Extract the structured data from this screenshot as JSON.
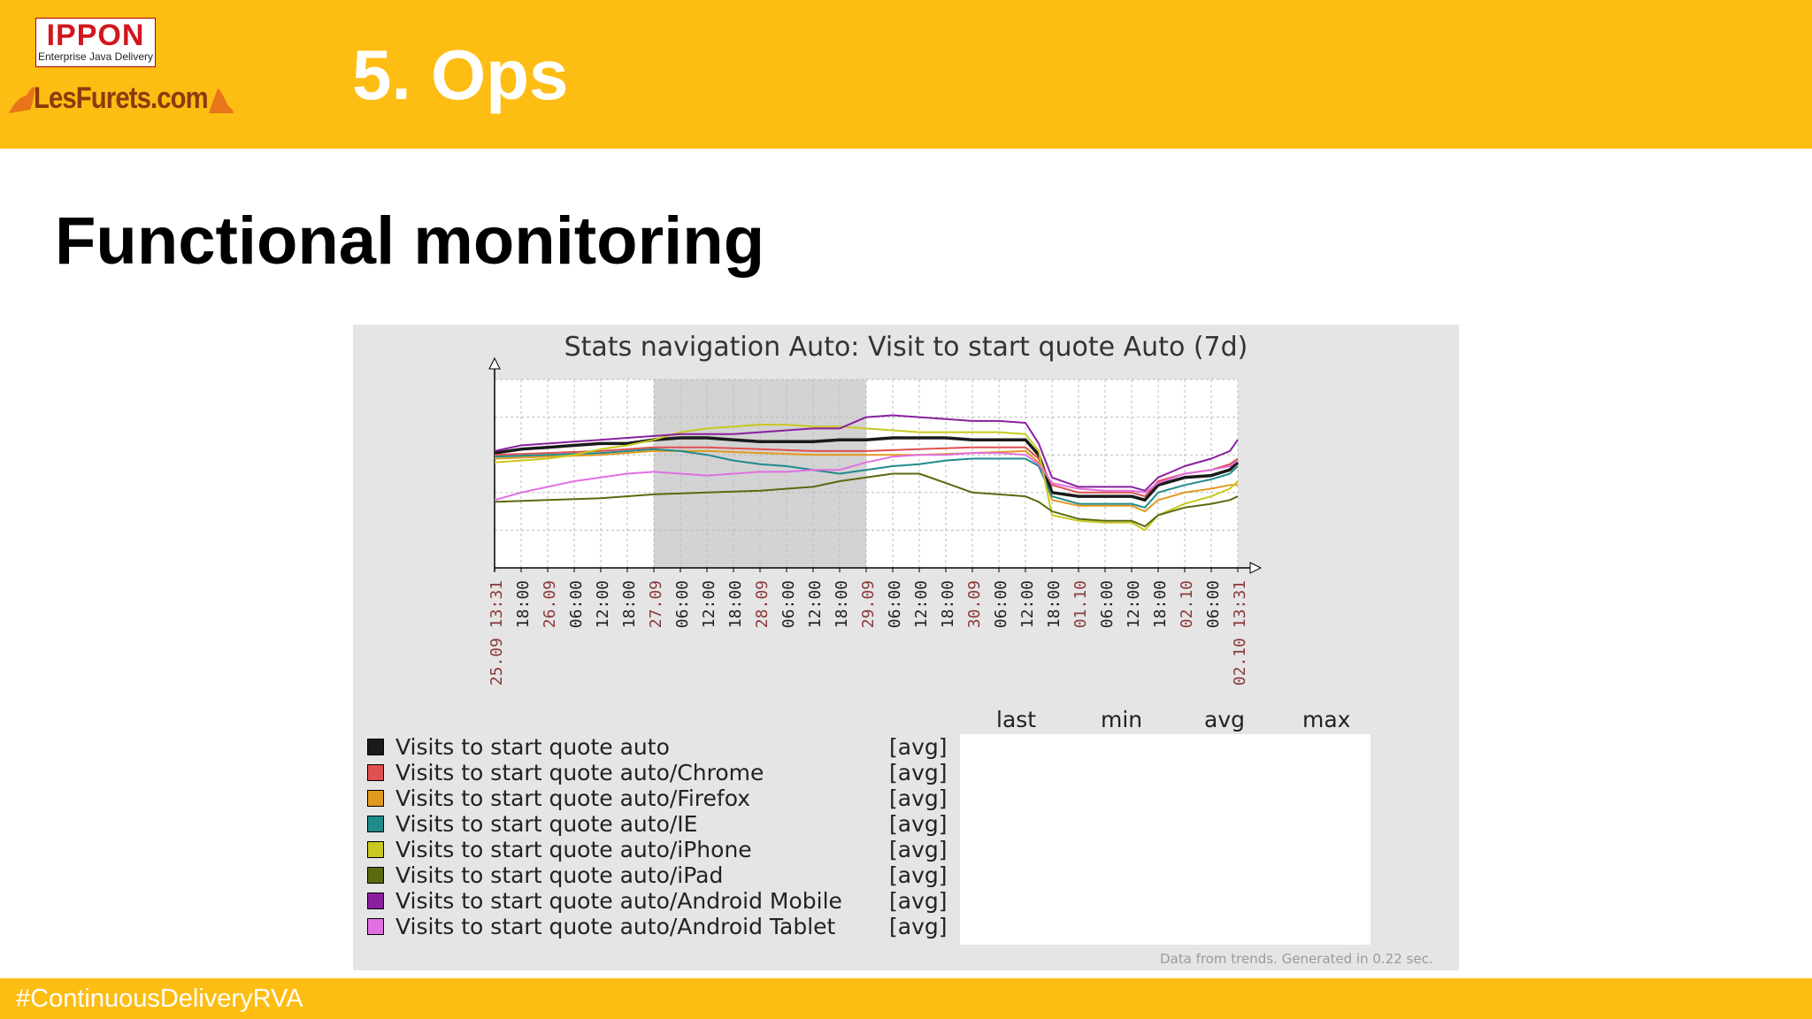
{
  "header": {
    "section_title": "5. Ops",
    "logos": {
      "ippon_name": "IPPON",
      "ippon_tagline": "Enterprise Java Delivery",
      "lesfurets": "LesFurets.com"
    }
  },
  "slide_title": "Functional monitoring",
  "footer": {
    "hashtag": "#ContinuousDeliveryRVA"
  },
  "chart_data": {
    "type": "line",
    "title": "Stats navigation Auto: Visit to start quote Auto (7d)",
    "xlabel": "",
    "ylabel": "",
    "x_ticks": [
      {
        "label": "25.09 13:31",
        "date_label": true
      },
      {
        "label": "18:00",
        "date_label": false
      },
      {
        "label": "26.09",
        "date_label": true
      },
      {
        "label": "06:00",
        "date_label": false
      },
      {
        "label": "12:00",
        "date_label": false
      },
      {
        "label": "18:00",
        "date_label": false
      },
      {
        "label": "27.09",
        "date_label": true
      },
      {
        "label": "06:00",
        "date_label": false
      },
      {
        "label": "12:00",
        "date_label": false
      },
      {
        "label": "18:00",
        "date_label": false
      },
      {
        "label": "28.09",
        "date_label": true
      },
      {
        "label": "06:00",
        "date_label": false
      },
      {
        "label": "12:00",
        "date_label": false
      },
      {
        "label": "18:00",
        "date_label": false
      },
      {
        "label": "29.09",
        "date_label": true
      },
      {
        "label": "06:00",
        "date_label": false
      },
      {
        "label": "12:00",
        "date_label": false
      },
      {
        "label": "18:00",
        "date_label": false
      },
      {
        "label": "30.09",
        "date_label": true
      },
      {
        "label": "06:00",
        "date_label": false
      },
      {
        "label": "12:00",
        "date_label": false
      },
      {
        "label": "18:00",
        "date_label": false
      },
      {
        "label": "01.10",
        "date_label": true
      },
      {
        "label": "06:00",
        "date_label": false
      },
      {
        "label": "12:00",
        "date_label": false
      },
      {
        "label": "18:00",
        "date_label": false
      },
      {
        "label": "02.10",
        "date_label": true
      },
      {
        "label": "06:00",
        "date_label": false
      },
      {
        "label": "02.10 13:31",
        "date_label": true
      }
    ],
    "x_range": [
      0,
      28
    ],
    "y_range": [
      0,
      100
    ],
    "shaded_range": [
      6,
      14
    ],
    "grid": true,
    "legend_position": "bottom-left",
    "legend_columns": [
      "last",
      "min",
      "avg",
      "max"
    ],
    "footnote": "Data from trends. Generated in 0.22 sec.",
    "series": [
      {
        "name": "Visits to start quote auto",
        "func": "[avg]",
        "color": "#1a1a1a",
        "width": 3.5,
        "x": [
          0,
          1,
          2,
          3,
          4,
          5,
          6,
          7,
          8,
          9,
          10,
          11,
          12,
          13,
          14,
          15,
          16,
          17,
          18,
          19,
          20,
          20.5,
          21,
          22,
          23,
          24,
          24.5,
          25,
          26,
          27,
          27.7,
          28
        ],
        "y": [
          61,
          63,
          64,
          65,
          66,
          66,
          68,
          69,
          69,
          68,
          67,
          67,
          67,
          68,
          68,
          69,
          69,
          69,
          68,
          68,
          68,
          60,
          40,
          38,
          38,
          38,
          36,
          44,
          48,
          49,
          52,
          56
        ]
      },
      {
        "name": "Visits to start quote auto/Chrome",
        "func": "[avg]",
        "color": "#e05050",
        "width": 2,
        "x": [
          0,
          2,
          4,
          6,
          8,
          10,
          12,
          14,
          16,
          18,
          20,
          20.5,
          21,
          22,
          23,
          24,
          24.5,
          25,
          26,
          27,
          27.7,
          28
        ],
        "y": [
          60,
          61,
          62,
          64,
          64,
          63,
          62,
          62,
          63,
          64,
          64,
          58,
          44,
          40,
          40,
          40,
          38,
          46,
          50,
          52,
          55,
          58
        ]
      },
      {
        "name": "Visits to start quote auto/Firefox",
        "func": "[avg]",
        "color": "#e09a20",
        "width": 2,
        "x": [
          0,
          2,
          4,
          6,
          8,
          10,
          12,
          14,
          16,
          18,
          20,
          20.5,
          21,
          22,
          23,
          24,
          24.5,
          25,
          26,
          27,
          27.7,
          28
        ],
        "y": [
          58,
          59,
          60,
          62,
          62,
          61,
          60,
          60,
          60,
          61,
          62,
          56,
          36,
          33,
          33,
          33,
          30,
          36,
          40,
          42,
          44,
          44
        ]
      },
      {
        "name": "Visits to start quote auto/IE",
        "func": "[avg]",
        "color": "#208b8b",
        "width": 2,
        "x": [
          0,
          2,
          4,
          6,
          7,
          8,
          9,
          10,
          11,
          12,
          13,
          14,
          15,
          16,
          17,
          18,
          19,
          20,
          20.5,
          21,
          22,
          23,
          24,
          24.5,
          25,
          26,
          27,
          27.7,
          28
        ],
        "y": [
          59,
          60,
          61,
          63,
          62,
          60,
          57,
          55,
          54,
          52,
          50,
          52,
          54,
          55,
          57,
          58,
          58,
          58,
          54,
          38,
          34,
          34,
          34,
          32,
          40,
          44,
          47,
          50,
          54
        ]
      },
      {
        "name": "Visits to start quote auto/iPhone",
        "func": "[avg]",
        "color": "#c8c820",
        "width": 2,
        "x": [
          0,
          1,
          2,
          3,
          4,
          5,
          6,
          7,
          8,
          9,
          10,
          11,
          12,
          13,
          14,
          15,
          16,
          17,
          18,
          19,
          20,
          20.5,
          21,
          22,
          23,
          24,
          24.5,
          25,
          26,
          27,
          27.7,
          28
        ],
        "y": [
          56,
          57,
          58,
          60,
          63,
          65,
          68,
          72,
          74,
          75,
          76,
          76,
          75,
          75,
          74,
          73,
          72,
          72,
          72,
          72,
          71,
          62,
          28,
          25,
          24,
          24,
          20,
          28,
          34,
          38,
          42,
          46
        ]
      },
      {
        "name": "Visits to start quote auto/iPad",
        "func": "[avg]",
        "color": "#5a6a10",
        "width": 2,
        "x": [
          0,
          2,
          4,
          6,
          8,
          10,
          12,
          13,
          14,
          15,
          16,
          17,
          18,
          19,
          20,
          20.5,
          21,
          22,
          23,
          24,
          24.5,
          25,
          26,
          27,
          27.7,
          28
        ],
        "y": [
          35,
          36,
          37,
          39,
          40,
          41,
          43,
          46,
          48,
          50,
          50,
          45,
          40,
          39,
          38,
          35,
          30,
          26,
          25,
          25,
          22,
          28,
          32,
          34,
          36,
          38
        ]
      },
      {
        "name": "Visits to start quote auto/Android Mobile",
        "func": "[avg]",
        "color": "#8a20a0",
        "width": 2,
        "x": [
          0,
          1,
          2,
          3,
          4,
          5,
          6,
          7,
          8,
          9,
          10,
          11,
          12,
          13,
          14,
          15,
          16,
          17,
          18,
          19,
          20,
          20.5,
          21,
          22,
          23,
          24,
          24.5,
          25,
          26,
          27,
          27.7,
          28
        ],
        "y": [
          62,
          65,
          66,
          67,
          68,
          69,
          70,
          71,
          71,
          71,
          72,
          73,
          74,
          74,
          80,
          81,
          80,
          79,
          78,
          78,
          77,
          66,
          48,
          43,
          43,
          43,
          41,
          48,
          54,
          58,
          62,
          68
        ]
      },
      {
        "name": "Visits to start quote auto/Android Tablet",
        "func": "[avg]",
        "color": "#e070e0",
        "width": 2,
        "x": [
          0,
          1,
          2,
          3,
          4,
          5,
          6,
          7,
          8,
          9,
          10,
          11,
          12,
          13,
          14,
          15,
          16,
          17,
          18,
          19,
          20,
          20.5,
          21,
          22,
          23,
          24,
          24.5,
          25,
          26,
          27,
          27.7,
          28
        ],
        "y": [
          36,
          40,
          43,
          46,
          48,
          50,
          51,
          50,
          49,
          50,
          51,
          51,
          52,
          52,
          56,
          59,
          60,
          60,
          61,
          61,
          60,
          55,
          45,
          42,
          41,
          41,
          40,
          45,
          50,
          52,
          54,
          57
        ]
      }
    ]
  }
}
